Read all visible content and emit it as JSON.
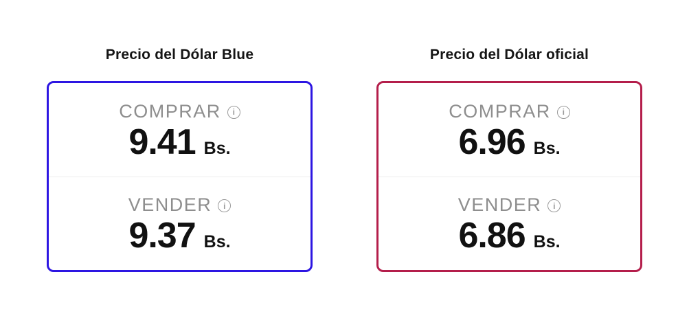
{
  "page": {
    "background": "#ffffff"
  },
  "icons": {
    "info_glyph": "i"
  },
  "cards": [
    {
      "title": "Precio del Dólar Blue",
      "accent_color": "#2d16e2",
      "buy": {
        "label": "COMPRAR",
        "value": "9.41",
        "unit": "Bs."
      },
      "sell": {
        "label": "VENDER",
        "value": "9.37",
        "unit": "Bs."
      }
    },
    {
      "title": "Precio del Dólar oficial",
      "accent_color": "#b41e4b",
      "buy": {
        "label": "COMPRAR",
        "value": "6.96",
        "unit": "Bs."
      },
      "sell": {
        "label": "VENDER",
        "value": "6.86",
        "unit": "Bs."
      }
    }
  ]
}
